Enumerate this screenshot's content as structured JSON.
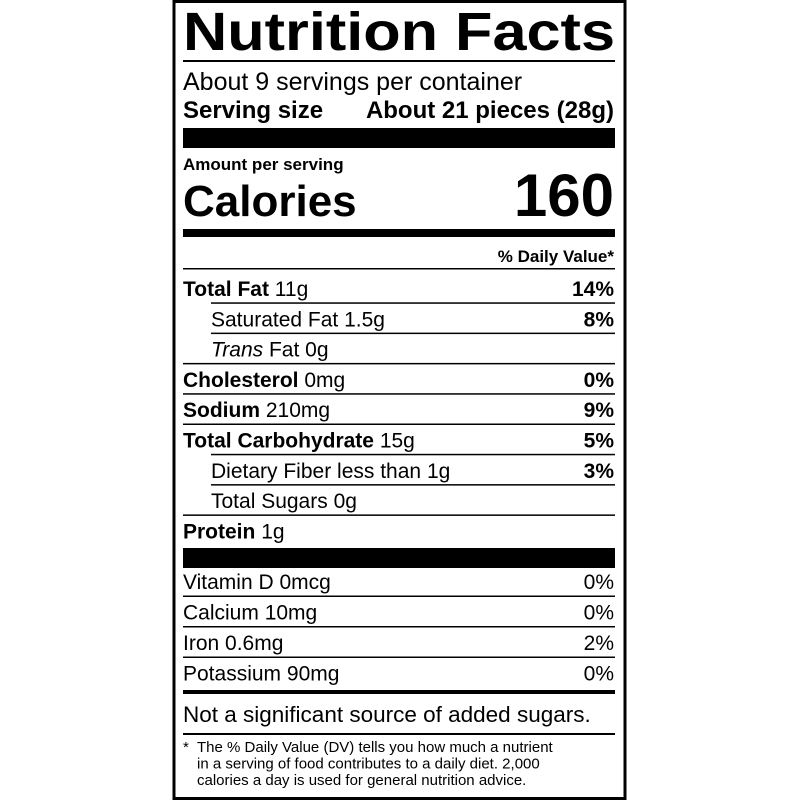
{
  "header": {
    "title": "Nutrition Facts",
    "servings": "About 9 servings per container",
    "serving_size_label": "Serving size",
    "serving_size": "About 21 pieces (28g)"
  },
  "calories": {
    "amount_label": "Amount per serving",
    "label": "Calories",
    "value": 160
  },
  "dv_header": "% Daily Value*",
  "nutrients": [
    {
      "name": "Total Fat",
      "amount": "11g",
      "dv": "14%",
      "bold": true,
      "indent": false
    },
    {
      "name": "Saturated Fat",
      "amount": "1.5g",
      "dv": "8%",
      "bold": false,
      "indent": true
    },
    {
      "name_italic": "Trans",
      "name": "Fat",
      "amount": "0g",
      "bold": false,
      "indent": true
    },
    {
      "name": "Cholesterol",
      "amount": "0mg",
      "dv": "0%",
      "bold": true,
      "indent": false
    },
    {
      "name": "Sodium",
      "amount": "210mg",
      "dv": "9%",
      "bold": true,
      "indent": false
    },
    {
      "name": "Total Carbohydrate",
      "amount": "15g",
      "dv": "5%",
      "bold": true,
      "indent": false
    },
    {
      "name": "Dietary Fiber less than",
      "amount": "1g",
      "dv": "3%",
      "bold": false,
      "indent": true
    },
    {
      "name": "Total Sugars",
      "amount": "0g",
      "bold": false,
      "indent": true
    },
    {
      "name": "Protein",
      "amount": "1g",
      "bold": true,
      "indent": false
    }
  ],
  "vitamins": [
    {
      "name": "Vitamin D",
      "amount": "0mcg",
      "dv": "0%"
    },
    {
      "name": "Calcium",
      "amount": "10mg",
      "dv": "0%"
    },
    {
      "name": "Iron",
      "amount": "0.6mg",
      "dv": "2%"
    },
    {
      "name": "Potassium",
      "amount": "90mg",
      "dv": "0%"
    }
  ],
  "added_sugars_note": "Not a significant source of added sugars.",
  "footnote": {
    "marker": "*",
    "lines": [
      "The % Daily Value (DV) tells you how much a nutrient",
      "in a serving of food contributes to a daily diet. 2,000",
      "calories a day is used for general nutrition advice."
    ]
  }
}
